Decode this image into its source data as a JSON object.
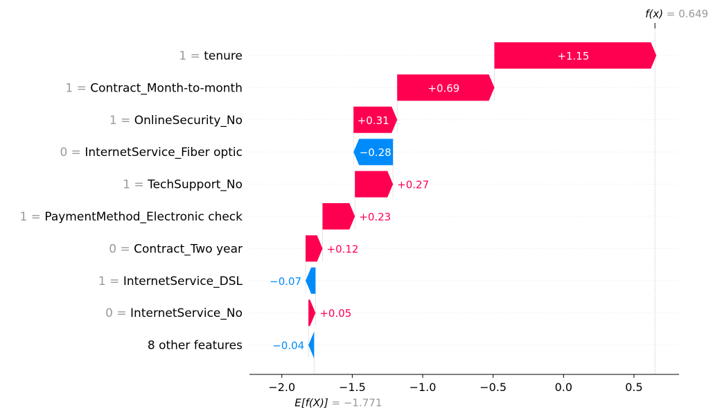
{
  "chart_data": {
    "type": "waterfall",
    "base_value": -1.771,
    "base_value_label": {
      "expr": "E[f(X)]",
      "eq": " = ",
      "value_text": "−1.771"
    },
    "final_value": 0.649,
    "final_value_label": {
      "expr": "f(x)",
      "eq": " = ",
      "value_text": "0.649"
    },
    "features": [
      {
        "value": "1",
        "name": "tenure",
        "contribution": 1.15,
        "label": "+1.15"
      },
      {
        "value": "1",
        "name": "Contract_Month-to-month",
        "contribution": 0.69,
        "label": "+0.69"
      },
      {
        "value": "1",
        "name": "OnlineSecurity_No",
        "contribution": 0.31,
        "label": "+0.31"
      },
      {
        "value": "0",
        "name": "InternetService_Fiber optic",
        "contribution": -0.28,
        "label": "−0.28"
      },
      {
        "value": "1",
        "name": "TechSupport_No",
        "contribution": 0.27,
        "label": "+0.27"
      },
      {
        "value": "1",
        "name": "PaymentMethod_Electronic check",
        "contribution": 0.23,
        "label": "+0.23"
      },
      {
        "value": "0",
        "name": "Contract_Two year",
        "contribution": 0.12,
        "label": "+0.12"
      },
      {
        "value": "1",
        "name": "InternetService_DSL",
        "contribution": -0.07,
        "label": "−0.07"
      },
      {
        "value": "0",
        "name": "InternetService_No",
        "contribution": 0.05,
        "label": "+0.05"
      },
      {
        "value": "",
        "name": "8 other features",
        "contribution": -0.04,
        "label": "−0.04"
      }
    ],
    "xticks": [
      -2.0,
      -1.5,
      -1.0,
      -0.5,
      0.0,
      0.5
    ],
    "xtick_labels": [
      "−2.0",
      "−1.5",
      "−1.0",
      "−0.5",
      "0.0",
      "0.5"
    ],
    "xlim": [
      -2.23,
      0.82
    ],
    "colors": {
      "positive": "#ff0051",
      "negative": "#008bfb",
      "grid": "#dddddd",
      "ref_line": "#bbbbbb"
    }
  }
}
